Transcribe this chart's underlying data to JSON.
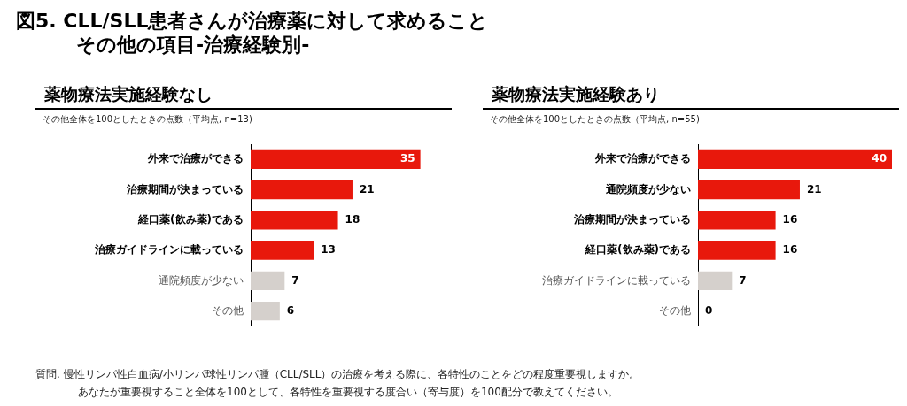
{
  "chart_data": [
    {
      "type": "other",
      "title": "図5. CLL/SLL患者さんが治療薬に対して求めること",
      "subtitle": "その他の項目-治療経験別-",
      "annotations": [
        "質問.  慢性リンパ性白血病/小リンパ球性リンパ腫（CLL/SLL）の治療を考える際に、各特性のことをどの程度重要視しますか。",
        "あなたが重要視すること全体を100として、各特性を重要視する度合い（寄与度）を100配分で教えてください。"
      ]
    },
    {
      "type": "bar",
      "orientation": "horizontal",
      "title": "薬物療法実施経験なし",
      "subtitle": "その他全体を100としたときの点数（平均点, n=13)",
      "categories": [
        "外来で治療ができる",
        "治療期間が決まっている",
        "経口薬(飲み薬)である",
        "治療ガイドラインに載っている",
        "通院頻度が少ない",
        "その他"
      ],
      "values": [
        35,
        21,
        18,
        13,
        7,
        6
      ],
      "colors": [
        "#e8180c",
        "#e8180c",
        "#e8180c",
        "#e8180c",
        "#d5d0cc",
        "#d5d0cc"
      ],
      "data_labels": true
    },
    {
      "type": "bar",
      "orientation": "horizontal",
      "title": "薬物療法実施経験あり",
      "subtitle": "その他全体を100としたときの点数（平均点, n=55)",
      "categories": [
        "外来で治療ができる",
        "通院頻度が少ない",
        "治療期間が決まっている",
        "経口薬(飲み薬)である",
        "治療ガイドラインに載っている",
        "その他"
      ],
      "values": [
        40,
        21,
        16,
        16,
        7,
        0
      ],
      "colors": [
        "#e8180c",
        "#e8180c",
        "#e8180c",
        "#e8180c",
        "#d5d0cc",
        "#d5d0cc"
      ],
      "data_labels": true
    }
  ]
}
